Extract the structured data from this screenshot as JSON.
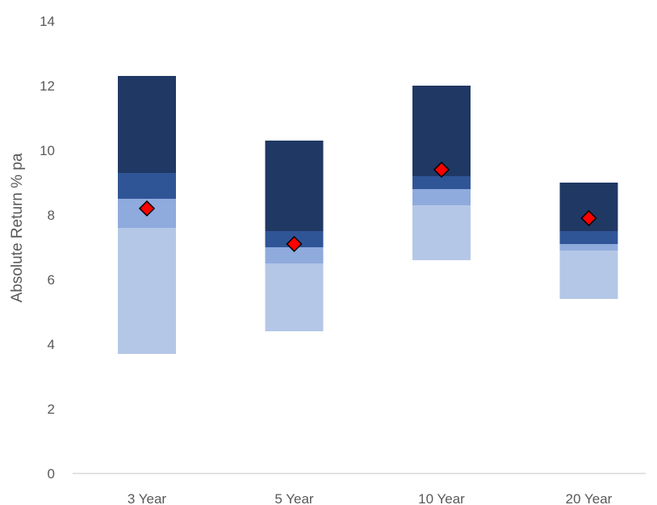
{
  "chart_data": {
    "type": "bar",
    "subtype": "floating-stacked-range",
    "ylabel": "Absolute Return % pa",
    "xlabel": "",
    "ylim": [
      0,
      14
    ],
    "yticks": [
      0,
      2,
      4,
      6,
      8,
      10,
      12,
      14
    ],
    "grid": false,
    "legend": "none",
    "categories": [
      "3 Year",
      "5 Year",
      "10 Year",
      "20 Year"
    ],
    "series": [
      {
        "color": "#b4c7e7",
        "low": [
          3.7,
          4.4,
          6.6,
          5.4
        ],
        "high": [
          7.6,
          6.5,
          8.3,
          6.9
        ]
      },
      {
        "color": "#8faadc",
        "low": [
          7.6,
          6.5,
          8.3,
          6.9
        ],
        "high": [
          8.5,
          7.0,
          8.8,
          7.1
        ]
      },
      {
        "color": "#2f5597",
        "low": [
          8.5,
          7.0,
          8.8,
          7.1
        ],
        "high": [
          9.3,
          7.5,
          9.2,
          7.5
        ]
      },
      {
        "color": "#203864",
        "low": [
          9.3,
          7.5,
          9.2,
          7.5
        ],
        "high": [
          12.3,
          10.3,
          12.0,
          9.0
        ]
      }
    ],
    "markers": {
      "shape": "diamond",
      "color": "#ff0000",
      "edge_color": "#000000",
      "values": [
        8.2,
        7.1,
        9.4,
        7.9
      ]
    },
    "axis_color": "#d9d9d9"
  }
}
